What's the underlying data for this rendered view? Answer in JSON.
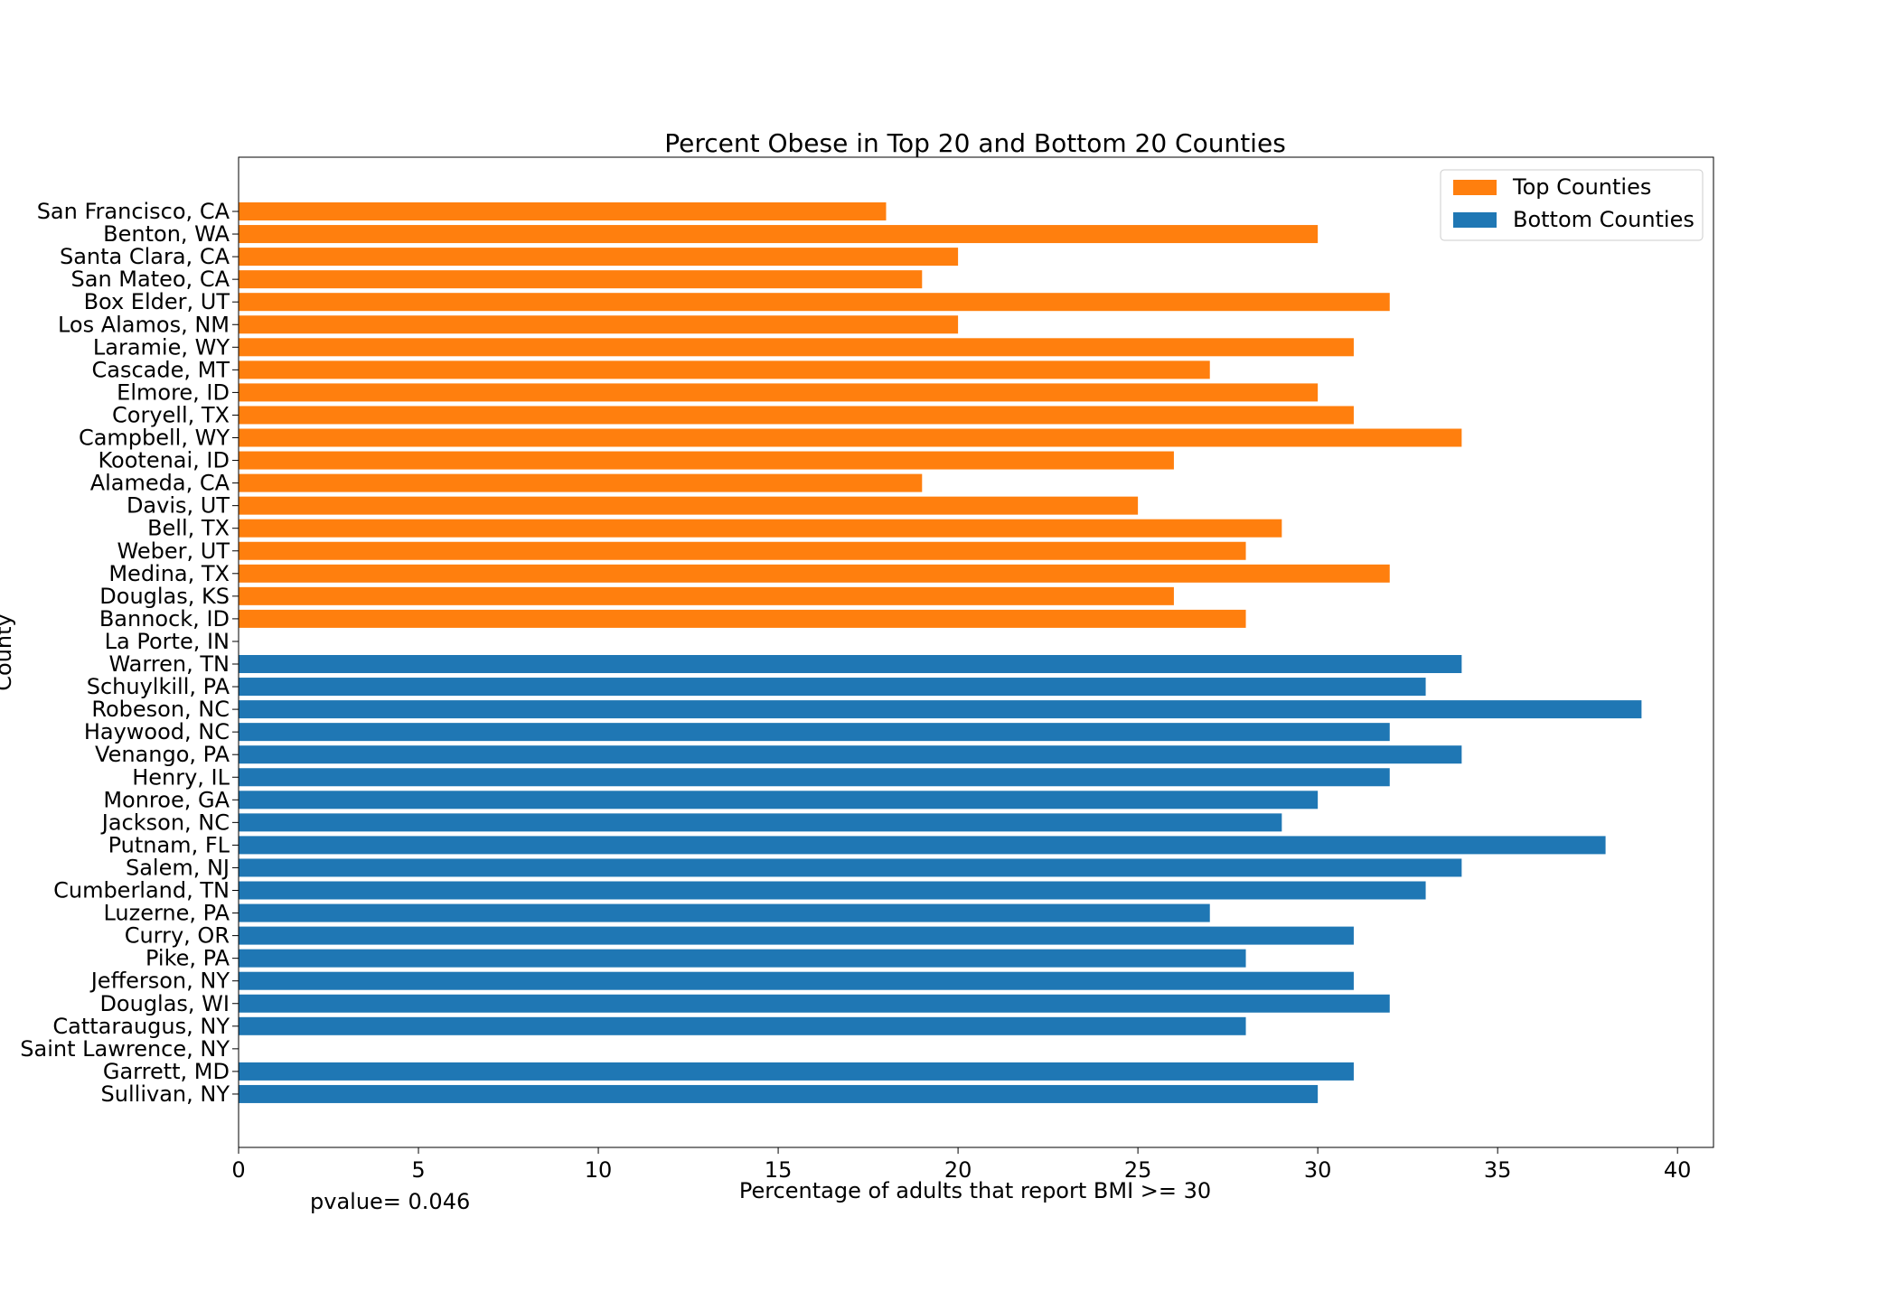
{
  "chart_data": {
    "type": "bar",
    "orientation": "horizontal",
    "title": "Percent Obese in Top 20 and Bottom 20 Counties",
    "xlabel": "Percentage of adults that report BMI >= 30",
    "ylabel": "County",
    "xlim": [
      0,
      41
    ],
    "xticks": [
      0,
      5,
      10,
      15,
      20,
      25,
      30,
      35,
      40
    ],
    "grid": false,
    "legend_position": "top-right",
    "series": [
      {
        "name": "Top Counties",
        "color": "#ff7f0e",
        "categories": [
          "San Francisco, CA",
          "Benton, WA",
          "Santa Clara, CA",
          "San Mateo, CA",
          "Box Elder, UT",
          "Los Alamos, NM",
          "Laramie, WY",
          "Cascade, MT",
          "Elmore, ID",
          "Coryell, TX",
          "Campbell, WY",
          "Kootenai, ID",
          "Alameda, CA",
          "Davis, UT",
          "Bell, TX",
          "Weber, UT",
          "Medina, TX",
          "Douglas, KS",
          "Bannock, ID",
          "La Porte, IN"
        ],
        "values": [
          18,
          30,
          20,
          19,
          32,
          20,
          31,
          27,
          30,
          31,
          34,
          26,
          19,
          25,
          29,
          28,
          32,
          26,
          28,
          null
        ]
      },
      {
        "name": "Bottom Counties",
        "color": "#1f77b4",
        "categories": [
          "Warren, TN",
          "Schuylkill, PA",
          "Robeson, NC",
          "Haywood, NC",
          "Venango, PA",
          "Henry, IL",
          "Monroe, GA",
          "Jackson, NC",
          "Putnam, FL",
          "Salem, NJ",
          "Cumberland, TN",
          "Luzerne, PA",
          "Curry, OR",
          "Pike, PA",
          "Jefferson, NY",
          "Douglas, WI",
          "Cattaraugus, NY",
          "Saint Lawrence, NY",
          "Garrett, MD",
          "Sullivan, NY"
        ],
        "values": [
          34,
          33,
          39,
          32,
          34,
          32,
          30,
          29,
          38,
          34,
          33,
          27,
          31,
          28,
          31,
          32,
          28,
          null,
          31,
          30
        ]
      }
    ]
  },
  "annotation": {
    "pvalue_text": "pvalue= 0.046"
  }
}
